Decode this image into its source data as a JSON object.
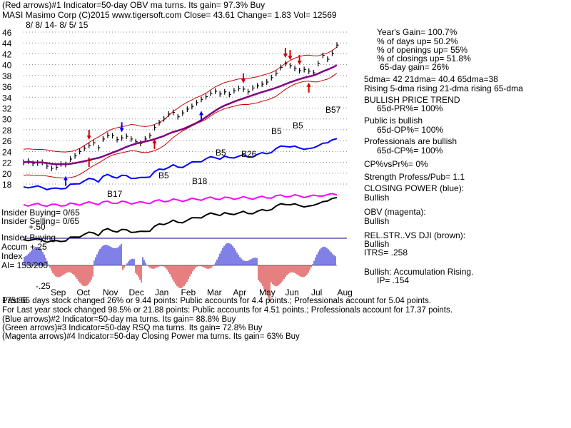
{
  "header": {
    "line1": "(Red arrows)#1 Indicator=50-day OBV ma turns. Its gain= 97.3% Buy",
    "line2": "MASI  Masimo Corp  (C)2015 www.tigersoft.com   Close=  43.61  Change= 1.83 Vol= 12569",
    "date_range": "8/ 8/ 14-  8/ 5/ 15"
  },
  "stats": [
    "Year's Gain= 100.7%",
    "% of days up= 50.2%",
    "% of openings up= 55%",
    "% of closings up= 51.8%",
    "65-day gain= 26%",
    "5dma= 42 21dma= 40.4 65dma=38",
    "Rising 5-dma rising 21-dma  rising 65-dma",
    "BULLISH PRICE TREND",
    "65d-PR%= 100%",
    "Public is bullish",
    "65d-OP%= 100%",
    "Professionals are bullish",
    "65d-CP%= 100%",
    "CP%vsPr%=  0%",
    "Strength Profess/Pub= 1.1",
    "CLOSING POWER (blue):",
    "Bullish",
    "OBV (magenta):",
    "Bullish",
    "REL.STR..VS DJI (brown):",
    "Bullish",
    "ITRS= .258",
    "Bullish: Accumulation Rising.",
    "IP=  .154"
  ],
  "indicator_labels": {
    "insider_buying_pct": "Insider Buying= 0/65",
    "insider_selling_pct": "Insider Selling= 0/65",
    "plus50": "+.50",
    "insider_buying": "Insider Buying",
    "accum": "Accum +.25",
    "index": "Index",
    "ai": "AI= 153/200",
    "minus25": "-.25"
  },
  "signals": {
    "b17": "B17",
    "b18": "B18",
    "b5a": "B5",
    "b5b": "B5",
    "b5c": "B5",
    "b5d": "B5",
    "b26": "B26",
    "b57": "B57"
  },
  "footer": [
    "Past 65 days stock changed  26% or  9.44 points:  Public accounts for  4.4 points.;  Professionals account for  5.04 points.",
    "For Last year stock changed  98.5% or  21.88 points:  Public accounts for  4.51 points.;  Professionals account for  17.37 points.",
    "(Blue arrows)#2 Indicator=50-day ma turns. Its gain= 88.8% Buy",
    "(Green arrows)#3 Indicator=50-day RSQ ma turns. Its gain= 72.8% Buy",
    "(Magenta arrows)#4 Indicator=50-day Closing Power ma turns. Its gain= 63% Buy"
  ],
  "footer_overlap": "175.86",
  "colors": {
    "price": "#000000",
    "bands": "#cc0000",
    "ma65": "#800080",
    "closing_power": "#0000ff",
    "obv": "#ff00ff",
    "rel_str": "#000000",
    "accum_pos": "#0000cc",
    "accum_neg": "#cc0000",
    "grid": "#888888"
  },
  "chart_data": {
    "type": "line",
    "title": "MASI  Masimo Corp",
    "y_ticks": [
      46,
      44,
      42,
      40,
      38,
      36,
      34,
      32,
      30,
      28,
      26,
      24,
      22,
      20,
      18
    ],
    "ylim": [
      17,
      47
    ],
    "x_ticks": [
      "Sep",
      "Oct",
      "Nov",
      "Dec",
      "Jan",
      "Feb",
      "Mar",
      "Apr",
      "May",
      "Jun",
      "Jul",
      "Aug"
    ],
    "series": [
      {
        "name": "",
        "values": [
          22.0,
          22.2,
          21.8,
          21.9,
          22.0,
          21.3,
          20.9,
          21.1,
          21.7,
          21.6,
          22.6,
          23.2,
          24.0,
          24.6,
          25.1,
          25.6,
          24.7,
          26.3,
          27.0,
          26.9,
          26.2,
          26.5,
          26.8,
          26.3,
          25.8,
          25.5,
          26.3,
          26.9,
          28.4,
          29.3,
          30.0,
          30.9,
          31.2,
          30.4,
          31.1,
          31.8,
          32.3,
          33.0,
          33.6,
          34.1,
          34.7,
          35.1,
          34.6,
          35.0,
          34.5,
          35.2,
          35.6,
          35.5,
          35.0,
          35.7,
          36.1,
          36.4,
          36.8,
          37.6,
          38.4,
          39.5,
          40.2,
          39.8,
          39.3,
          38.9,
          39.1,
          38.8,
          38.5,
          40.2,
          41.7,
          41.0,
          42.1,
          43.6
        ]
      }
    ]
  }
}
